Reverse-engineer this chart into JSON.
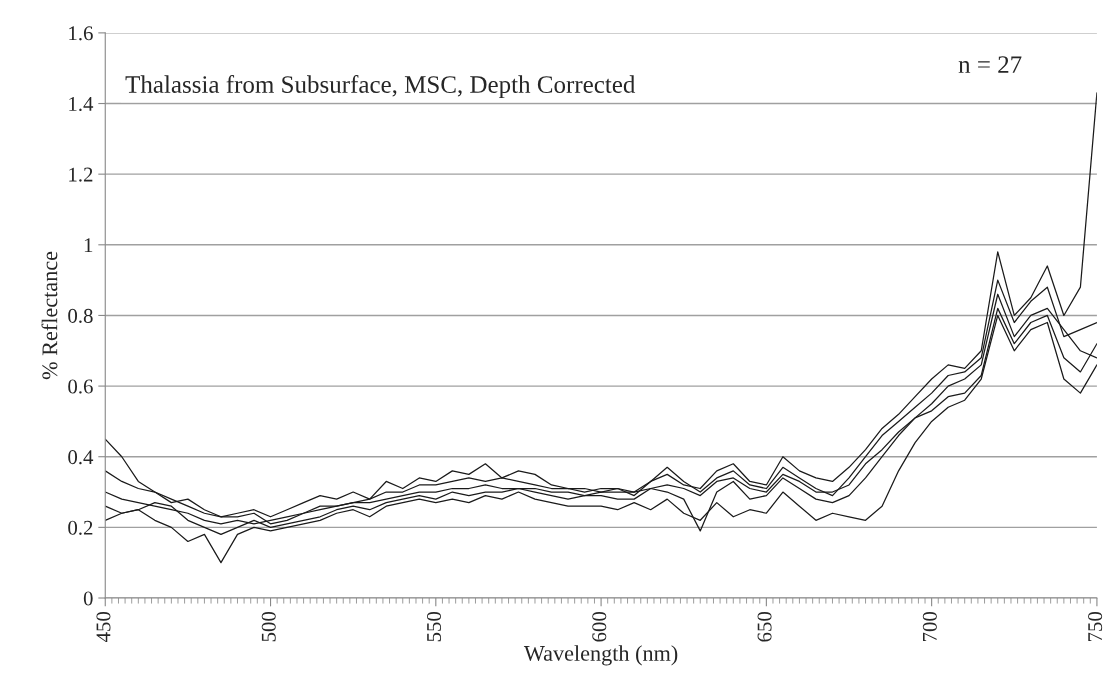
{
  "chart_data": {
    "type": "line",
    "title": "Thalassia from Subsurface, MSC, Depth Corrected",
    "xlabel": "Wavelength (nm)",
    "ylabel": "% Reflectance",
    "annotations": [
      "n = 27"
    ],
    "x": [
      450,
      455,
      460,
      465,
      470,
      475,
      480,
      485,
      490,
      495,
      500,
      505,
      510,
      515,
      520,
      525,
      530,
      535,
      540,
      545,
      550,
      555,
      560,
      565,
      570,
      575,
      580,
      585,
      590,
      595,
      600,
      605,
      610,
      615,
      620,
      625,
      630,
      635,
      640,
      645,
      650,
      655,
      660,
      665,
      670,
      675,
      680,
      685,
      690,
      695,
      700,
      705,
      710,
      715,
      720,
      725,
      730,
      735,
      740,
      745,
      750
    ],
    "series": [
      {
        "color": "#1a1a1a",
        "values": [
          0.3,
          0.28,
          0.27,
          0.26,
          0.25,
          0.24,
          0.22,
          0.21,
          0.22,
          0.21,
          0.22,
          0.23,
          0.24,
          0.25,
          0.26,
          0.27,
          0.27,
          0.28,
          0.29,
          0.3,
          0.3,
          0.31,
          0.31,
          0.32,
          0.31,
          0.31,
          0.31,
          0.3,
          0.3,
          0.29,
          0.3,
          0.3,
          0.3,
          0.31,
          0.32,
          0.31,
          0.29,
          0.33,
          0.34,
          0.31,
          0.3,
          0.35,
          0.33,
          0.3,
          0.3,
          0.32,
          0.38,
          0.42,
          0.47,
          0.51,
          0.55,
          0.6,
          0.62,
          0.66,
          0.86,
          0.74,
          0.8,
          0.82,
          0.76,
          0.7,
          0.68
        ]
      },
      {
        "color": "#1a1a1a",
        "values": [
          0.45,
          0.4,
          0.33,
          0.3,
          0.28,
          0.26,
          0.24,
          0.23,
          0.24,
          0.25,
          0.23,
          0.25,
          0.27,
          0.29,
          0.28,
          0.3,
          0.28,
          0.33,
          0.31,
          0.34,
          0.33,
          0.36,
          0.35,
          0.38,
          0.34,
          0.36,
          0.35,
          0.32,
          0.31,
          0.31,
          0.3,
          0.31,
          0.29,
          0.33,
          0.35,
          0.32,
          0.31,
          0.36,
          0.38,
          0.33,
          0.32,
          0.4,
          0.36,
          0.34,
          0.33,
          0.37,
          0.42,
          0.48,
          0.52,
          0.57,
          0.62,
          0.66,
          0.65,
          0.7,
          0.98,
          0.8,
          0.85,
          0.94,
          0.8,
          0.88,
          1.43
        ]
      },
      {
        "color": "#1a1a1a",
        "values": [
          0.22,
          0.24,
          0.25,
          0.22,
          0.2,
          0.16,
          0.18,
          0.1,
          0.18,
          0.2,
          0.19,
          0.2,
          0.21,
          0.22,
          0.24,
          0.25,
          0.23,
          0.26,
          0.27,
          0.28,
          0.27,
          0.28,
          0.27,
          0.29,
          0.28,
          0.3,
          0.28,
          0.27,
          0.26,
          0.26,
          0.26,
          0.25,
          0.27,
          0.25,
          0.28,
          0.24,
          0.22,
          0.27,
          0.23,
          0.25,
          0.24,
          0.3,
          0.26,
          0.22,
          0.24,
          0.23,
          0.22,
          0.26,
          0.36,
          0.44,
          0.5,
          0.54,
          0.56,
          0.62,
          0.8,
          0.7,
          0.76,
          0.78,
          0.62,
          0.58,
          0.66
        ]
      },
      {
        "color": "#1a1a1a",
        "values": [
          0.36,
          0.33,
          0.31,
          0.3,
          0.27,
          0.28,
          0.25,
          0.23,
          0.23,
          0.24,
          0.21,
          0.22,
          0.24,
          0.26,
          0.26,
          0.27,
          0.28,
          0.3,
          0.3,
          0.32,
          0.32,
          0.33,
          0.34,
          0.33,
          0.34,
          0.33,
          0.32,
          0.31,
          0.31,
          0.3,
          0.31,
          0.31,
          0.3,
          0.33,
          0.37,
          0.33,
          0.3,
          0.34,
          0.36,
          0.32,
          0.31,
          0.37,
          0.34,
          0.31,
          0.29,
          0.34,
          0.4,
          0.46,
          0.5,
          0.54,
          0.58,
          0.63,
          0.64,
          0.68,
          0.9,
          0.78,
          0.84,
          0.88,
          0.74,
          0.76,
          0.78
        ]
      },
      {
        "color": "#1a1a1a",
        "values": [
          0.26,
          0.24,
          0.25,
          0.27,
          0.26,
          0.22,
          0.2,
          0.18,
          0.2,
          0.22,
          0.2,
          0.21,
          0.22,
          0.23,
          0.25,
          0.26,
          0.25,
          0.27,
          0.28,
          0.29,
          0.28,
          0.3,
          0.29,
          0.3,
          0.3,
          0.31,
          0.3,
          0.29,
          0.28,
          0.29,
          0.29,
          0.28,
          0.28,
          0.31,
          0.3,
          0.28,
          0.19,
          0.3,
          0.33,
          0.28,
          0.29,
          0.34,
          0.31,
          0.28,
          0.27,
          0.29,
          0.34,
          0.4,
          0.46,
          0.51,
          0.53,
          0.57,
          0.58,
          0.63,
          0.82,
          0.72,
          0.78,
          0.8,
          0.68,
          0.64,
          0.72
        ]
      }
    ],
    "xlim": [
      450,
      750
    ],
    "xticks": [
      450,
      500,
      550,
      600,
      650,
      700,
      750
    ],
    "ylim": [
      0,
      1.6
    ],
    "yticks": [
      0,
      0.2,
      0.4,
      0.6,
      0.8,
      1,
      1.2,
      1.4,
      1.6
    ],
    "grid": "y",
    "legend": false,
    "marker": "none",
    "line_style": "solid"
  }
}
